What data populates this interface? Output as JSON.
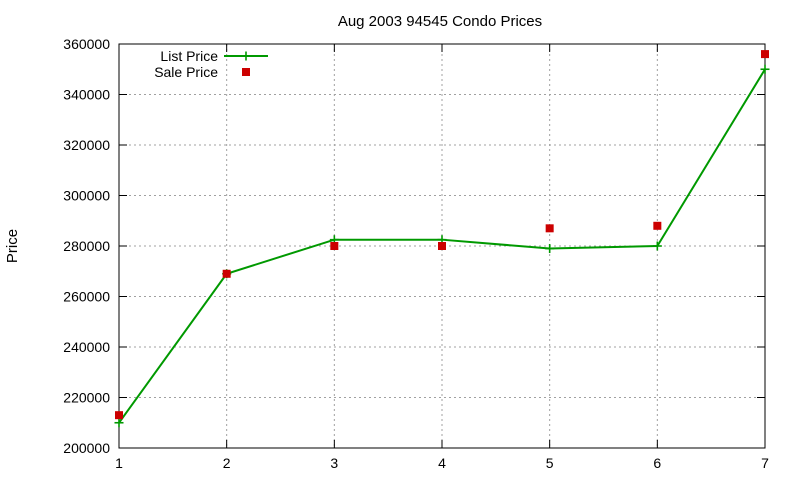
{
  "chart_data": {
    "type": "line",
    "title": "Aug 2003 94545 Condo Prices",
    "xlabel": "",
    "ylabel": "Price",
    "xlim": [
      1,
      7
    ],
    "ylim": [
      200000,
      360000
    ],
    "x_ticks": [
      "1",
      "2",
      "3",
      "4",
      "5",
      "6",
      "7"
    ],
    "y_ticks": [
      "200000",
      "220000",
      "240000",
      "260000",
      "280000",
      "300000",
      "320000",
      "340000",
      "360000"
    ],
    "grid": true,
    "legend_position": "top-left",
    "series": [
      {
        "name": "List Price",
        "style": "linespoints",
        "marker": "plus",
        "color": "#009900",
        "x": [
          1,
          2,
          3,
          4,
          5,
          6,
          7
        ],
        "y": [
          210000,
          269000,
          282500,
          282500,
          279000,
          280000,
          350000
        ]
      },
      {
        "name": "Sale Price",
        "style": "points",
        "marker": "square",
        "color": "#cc0000",
        "x": [
          1,
          2,
          3,
          4,
          5,
          6,
          7
        ],
        "y": [
          213000,
          269000,
          280000,
          280000,
          287000,
          288000,
          356000
        ]
      }
    ]
  }
}
